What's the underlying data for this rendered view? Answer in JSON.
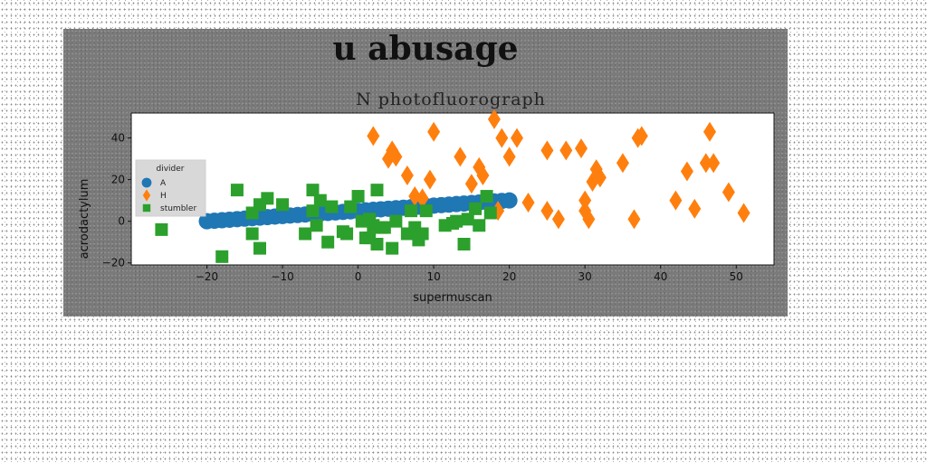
{
  "chart_data": {
    "type": "scatter",
    "suptitle": "u abusage",
    "title": "N photofluorograph",
    "xlabel": "supermuscan",
    "ylabel": "acrodactylum",
    "xlim": [
      -30,
      55
    ],
    "ylim": [
      -21,
      52
    ],
    "xticks": [
      -20,
      -10,
      0,
      10,
      20,
      30,
      40,
      50
    ],
    "yticks": [
      -20,
      0,
      20,
      40
    ],
    "xtick_labels": [
      "−20",
      "−10",
      "0",
      "10",
      "20",
      "30",
      "40",
      "50"
    ],
    "ytick_labels": [
      "−20",
      "0",
      "20",
      "40"
    ],
    "grid": false,
    "legend": {
      "title": "divider",
      "placement": "center-left"
    },
    "series": [
      {
        "name": "A",
        "marker": "circle",
        "color": "#1f77b4",
        "x": [
          -20,
          -19,
          -18,
          -17,
          -16,
          -15,
          -14,
          -13,
          -12,
          -11,
          -10,
          -9,
          -8,
          -7,
          -6,
          -5,
          -4,
          -3,
          -2,
          -1,
          0,
          1,
          2,
          3,
          4,
          5,
          6,
          7,
          8,
          9,
          10,
          11,
          12,
          13,
          14,
          15,
          16,
          17,
          18,
          19,
          20
        ],
        "y": [
          0,
          0.25,
          0.5,
          0.75,
          1,
          1.25,
          1.5,
          1.75,
          2,
          2.25,
          2.5,
          2.75,
          3,
          3.25,
          3.5,
          3.75,
          4,
          4.25,
          4.5,
          4.75,
          5,
          5.25,
          5.5,
          5.75,
          6,
          6.25,
          6.5,
          6.75,
          7,
          7.25,
          7.5,
          7.75,
          8,
          8.25,
          8.5,
          8.75,
          9,
          9.25,
          9.5,
          9.75,
          10
        ]
      },
      {
        "name": "H",
        "marker": "diamond",
        "color": "#ff7f0e",
        "x": [
          2,
          4,
          4.5,
          5,
          6.5,
          7.5,
          8.5,
          9.5,
          10,
          13.5,
          15,
          16,
          16.5,
          18,
          18.5,
          19,
          20,
          21,
          22.5,
          25,
          25,
          26.5,
          27.5,
          29.5,
          30,
          30,
          30.5,
          31,
          31.5,
          32,
          35,
          36.5,
          37,
          37.5,
          42,
          43.5,
          44.5,
          46,
          46.5,
          47,
          49,
          51
        ],
        "y": [
          41,
          30,
          34,
          31,
          22,
          12,
          11,
          20,
          43,
          31,
          18,
          26,
          22,
          49,
          5,
          40,
          31,
          40,
          9,
          34,
          5,
          1,
          34,
          35,
          10,
          5,
          1,
          19,
          25,
          21,
          28,
          1,
          40,
          41,
          10,
          24,
          6,
          28,
          43,
          28,
          14,
          4
        ]
      },
      {
        "name": "stumbler",
        "marker": "square",
        "color": "#2ca02c",
        "x": [
          -26,
          -18,
          -16,
          -14,
          -14,
          -13,
          -13,
          -12,
          -10,
          -7,
          -6,
          -6,
          -5.5,
          -5,
          -4,
          -3.5,
          -2,
          -1.5,
          -1,
          0,
          0.5,
          1,
          1.5,
          1.5,
          2,
          2.5,
          2.5,
          3,
          3.5,
          4.5,
          5,
          6.5,
          7,
          7.5,
          8,
          8.5,
          9,
          11.5,
          12.5,
          13,
          14,
          14.5,
          15.5,
          16,
          17,
          17.5
        ],
        "y": [
          -4,
          -17,
          15,
          -6,
          4,
          -13,
          8,
          11,
          8,
          -6,
          15,
          5,
          -2,
          10,
          -10,
          7,
          -5,
          -6,
          7,
          12,
          0,
          -8,
          1,
          -8,
          -2,
          15,
          -11,
          -3,
          -3,
          -13,
          0,
          -6,
          5,
          -3,
          -9,
          -6,
          5,
          -2,
          -1,
          0,
          -11,
          1,
          6,
          -2,
          12,
          4
        ]
      }
    ]
  },
  "colors": {
    "figure_bg": "#7a7a7a",
    "axes_bg": "#ffffff",
    "legend_bg": "#d8d8d8"
  }
}
